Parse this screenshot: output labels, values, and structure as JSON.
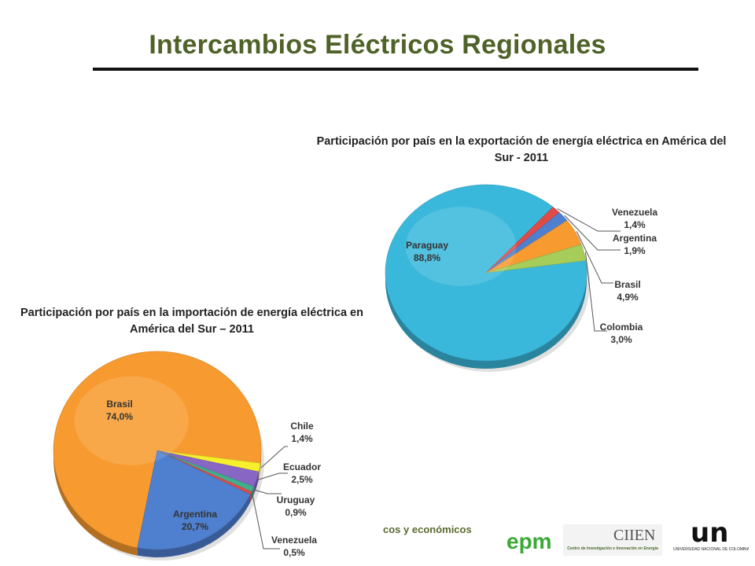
{
  "slide": {
    "title": "Intercambios Eléctricos Regionales"
  },
  "footer": {
    "text": "cos y económicos"
  },
  "logos": {
    "epm": {
      "text": "epm"
    },
    "ciien": {
      "name": "CIIEN",
      "subtitle": "Centro de Investigación e Innovación en Energía"
    },
    "un": {
      "mark": "un",
      "subtitle": "UNIVERSIDAD NACIONAL DE COLOMBIA"
    }
  },
  "chart_data": [
    {
      "id": "export",
      "type": "pie",
      "title_lines": [
        "Participación por país en la exportación  de energía eléctrica en América del",
        "Sur  - 2011"
      ],
      "slices": [
        {
          "name": "Paraguay",
          "value": 88.8,
          "label": "88,8%",
          "color": "#3ab8dc"
        },
        {
          "name": "Venezuela",
          "value": 1.4,
          "label": "1,4%",
          "color": "#e04b48"
        },
        {
          "name": "Argentina",
          "value": 1.9,
          "label": "1,9%",
          "color": "#4f7fcf"
        },
        {
          "name": "Brasil",
          "value": 4.9,
          "label": "4,9%",
          "color": "#f79a2f"
        },
        {
          "name": "Colombia",
          "value": 3.0,
          "label": "3,0%",
          "color": "#a6cc5a"
        }
      ]
    },
    {
      "id": "import",
      "type": "pie",
      "title_lines": [
        "Participación por país en la importación de energía eléctrica en",
        "América del Sur – 2011"
      ],
      "slices": [
        {
          "name": "Brasil",
          "value": 74.0,
          "label": "74,0%",
          "color": "#f79a2f"
        },
        {
          "name": "Chile",
          "value": 1.4,
          "label": "1,4%",
          "color": "#f5ef2c"
        },
        {
          "name": "Ecuador",
          "value": 2.5,
          "label": "2,5%",
          "color": "#8866c4"
        },
        {
          "name": "Uruguay",
          "value": 0.9,
          "label": "0,9%",
          "color": "#43ad8e"
        },
        {
          "name": "Venezuela",
          "value": 0.5,
          "label": "0,5%",
          "color": "#e04b48"
        },
        {
          "name": "Argentina",
          "value": 20.7,
          "label": "20,7%",
          "color": "#4f7fcf"
        }
      ]
    }
  ]
}
